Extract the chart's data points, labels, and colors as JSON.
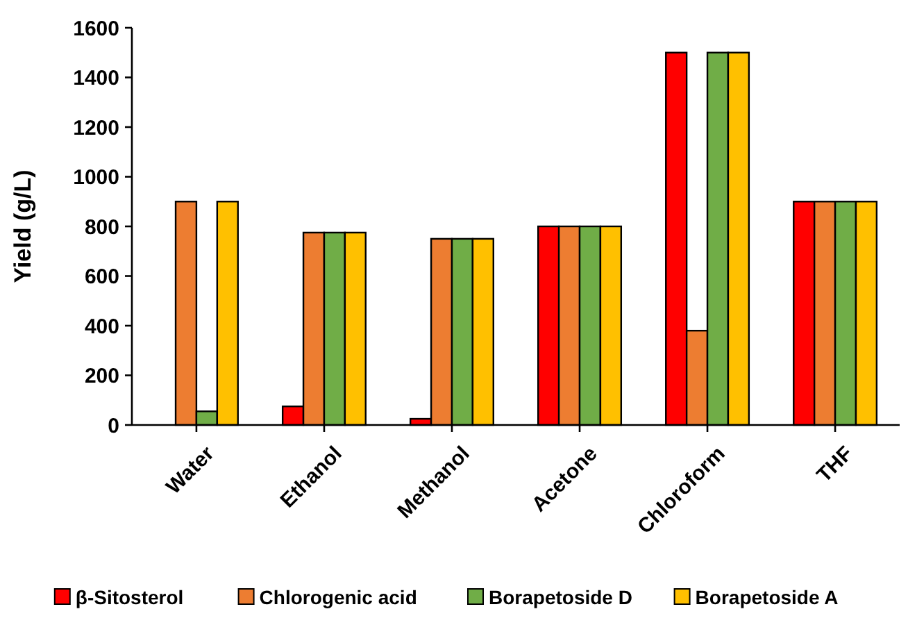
{
  "chart_data": {
    "type": "bar",
    "ylabel": "Yield (g/L)",
    "categories": [
      "Water",
      "Ethanol",
      "Methanol",
      "Acetone",
      "Chloroform",
      "THF"
    ],
    "series": [
      {
        "name": "β-Sitosterol",
        "color": "#ff0000",
        "values": [
          0,
          75,
          25,
          800,
          1500,
          900
        ]
      },
      {
        "name": "Chlorogenic acid",
        "color": "#ed7d31",
        "values": [
          900,
          775,
          750,
          800,
          380,
          900
        ]
      },
      {
        "name": "Borapetoside D",
        "color": "#70ad47",
        "values": [
          55,
          775,
          750,
          800,
          1500,
          900
        ]
      },
      {
        "name": "Borapetoside A",
        "color": "#ffc000",
        "values": [
          900,
          775,
          750,
          800,
          1500,
          900
        ]
      }
    ],
    "ylim": [
      0,
      1600
    ],
    "yticks": [
      0,
      200,
      400,
      600,
      800,
      1000,
      1200,
      1400,
      1600
    ],
    "grid": false,
    "legend": "bottom"
  }
}
